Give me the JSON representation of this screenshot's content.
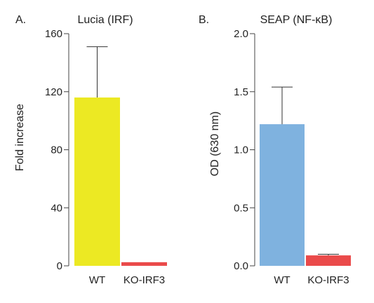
{
  "chart_data": [
    {
      "panel": "A.",
      "type": "bar",
      "title": "Lucia (IRF)",
      "ylabel": "Fold increase",
      "xlabel": "",
      "ylim": [
        0,
        160
      ],
      "yticks": [
        "0",
        "40",
        "80",
        "120",
        "160"
      ],
      "categories": [
        "WT",
        "KO-IRF3"
      ],
      "values": [
        116,
        2.5
      ],
      "errors_upper": [
        35,
        0
      ],
      "colors": [
        "#ece923",
        "#ea4a4a"
      ],
      "grid": false
    },
    {
      "panel": "B.",
      "type": "bar",
      "title": "SEAP (NF-κB)",
      "ylabel": "OD (630 nm)",
      "xlabel": "",
      "ylim": [
        0,
        2.0
      ],
      "yticks": [
        "0.0",
        "0.5",
        "1.0",
        "1.5",
        "2.0"
      ],
      "categories": [
        "WT",
        "KO-IRF3"
      ],
      "values": [
        1.22,
        0.09
      ],
      "errors_upper": [
        0.32,
        0.01
      ],
      "colors": [
        "#7fb2df",
        "#ea4a4a"
      ],
      "grid": false
    }
  ]
}
